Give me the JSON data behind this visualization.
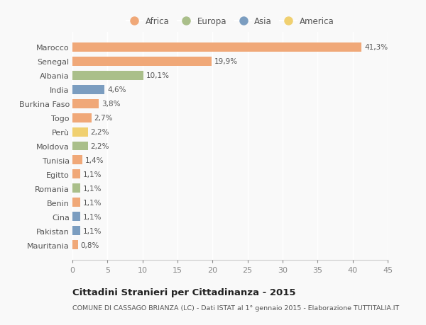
{
  "countries": [
    "Marocco",
    "Senegal",
    "Albania",
    "India",
    "Burkina Faso",
    "Togo",
    "Perù",
    "Moldova",
    "Tunisia",
    "Egitto",
    "Romania",
    "Benin",
    "Cina",
    "Pakistan",
    "Mauritania"
  ],
  "values": [
    41.3,
    19.9,
    10.1,
    4.6,
    3.8,
    2.7,
    2.2,
    2.2,
    1.4,
    1.1,
    1.1,
    1.1,
    1.1,
    1.1,
    0.8
  ],
  "labels": [
    "41,3%",
    "19,9%",
    "10,1%",
    "4,6%",
    "3,8%",
    "2,7%",
    "2,2%",
    "2,2%",
    "1,4%",
    "1,1%",
    "1,1%",
    "1,1%",
    "1,1%",
    "1,1%",
    "0,8%"
  ],
  "continents": [
    "Africa",
    "Africa",
    "Europa",
    "Asia",
    "Africa",
    "Africa",
    "America",
    "Europa",
    "Africa",
    "Africa",
    "Europa",
    "Africa",
    "Asia",
    "Asia",
    "Africa"
  ],
  "continent_colors": {
    "Africa": "#F0A878",
    "Europa": "#AABF8A",
    "Asia": "#7B9DC0",
    "America": "#F0D070"
  },
  "legend_order": [
    "Africa",
    "Europa",
    "Asia",
    "America"
  ],
  "title": "Cittadini Stranieri per Cittadinanza - 2015",
  "subtitle": "COMUNE DI CASSAGO BRIANZA (LC) - Dati ISTAT al 1° gennaio 2015 - Elaborazione TUTTITALIA.IT",
  "xlim": [
    0,
    45
  ],
  "xticks": [
    0,
    5,
    10,
    15,
    20,
    25,
    30,
    35,
    40,
    45
  ],
  "background_color": "#f9f9f9",
  "bar_height": 0.65,
  "fig_width": 6.0,
  "fig_height": 4.6,
  "dpi": 100
}
